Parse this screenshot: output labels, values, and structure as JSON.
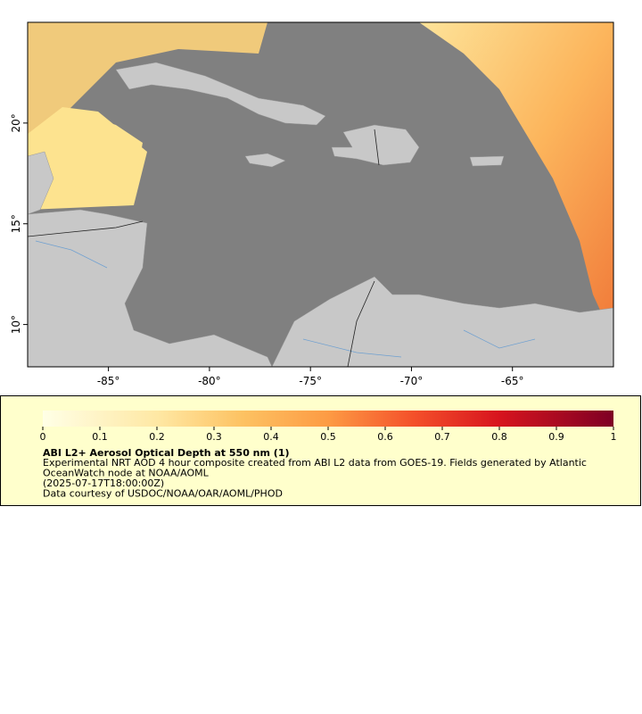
{
  "map": {
    "type": "map",
    "xlim": [
      -89,
      -60
    ],
    "ylim": [
      7.9,
      25
    ],
    "xticks": [
      {
        "value": -85,
        "label": "-85°"
      },
      {
        "value": -80,
        "label": "-80°"
      },
      {
        "value": -75,
        "label": "-75°"
      },
      {
        "value": -70,
        "label": "-70°"
      },
      {
        "value": -65,
        "label": "-65°"
      }
    ],
    "yticks": [
      {
        "value": 10,
        "label": "10°"
      },
      {
        "value": 15,
        "label": "15°"
      },
      {
        "value": 20,
        "label": "20°"
      }
    ]
  },
  "legend": {
    "range": [
      0,
      1
    ],
    "ticks": [
      0,
      0.1,
      0.2,
      0.3,
      0.4,
      0.5,
      0.6,
      0.7,
      0.8,
      0.9,
      1
    ],
    "title": "ABI L2+ Aerosol Optical Depth at 550 nm (1)",
    "lines": [
      "Experimental NRT AOD 4 hour composite created from ABI L2 data from GOES-19. Fields generated by Atlantic",
      "OceanWatch node at NOAA/AOML",
      "(2025-07-17T18:00:00Z)",
      "Data courtesy of USDOC/NOAA/OAR/AOML/PHOD"
    ]
  }
}
